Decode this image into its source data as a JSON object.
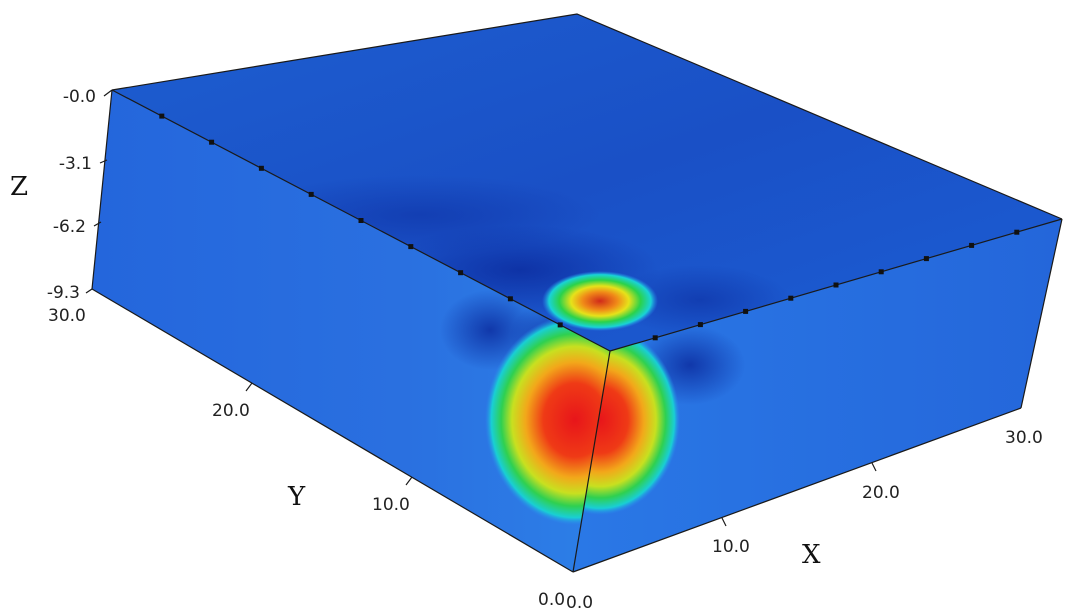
{
  "chart_data": {
    "type": "3d-volume",
    "axes": {
      "x": {
        "label": "X",
        "range": [
          0.0,
          30.0
        ],
        "ticks": [
          "0.0",
          "10.0",
          "20.0",
          "30.0"
        ]
      },
      "y": {
        "label": "Y",
        "range": [
          0.0,
          30.0
        ],
        "ticks": [
          "0.0",
          "10.0",
          "20.0",
          "30.0"
        ]
      },
      "z": {
        "label": "Z",
        "range": [
          -9.3,
          0.0
        ],
        "ticks": [
          "-0.0",
          "-3.1",
          "-6.2",
          "-9.3"
        ]
      }
    },
    "electrode_markers": {
      "top_left_edge": 9,
      "top_right_edge": 9
    },
    "colormap": [
      "#0a2a9a",
      "#1d5fd6",
      "#2a8cf0",
      "#19d3d6",
      "#2bd24a",
      "#e6e21a",
      "#f08a18",
      "#e6161a"
    ],
    "anomaly": {
      "x_center": 4,
      "y_center": 2,
      "z_center": -5.5,
      "description": "high-value anomaly"
    },
    "colors": {
      "background": "#ffffff",
      "edge": "#1a1a1a",
      "low": "#1d5fd6",
      "high": "#e6161a"
    }
  }
}
